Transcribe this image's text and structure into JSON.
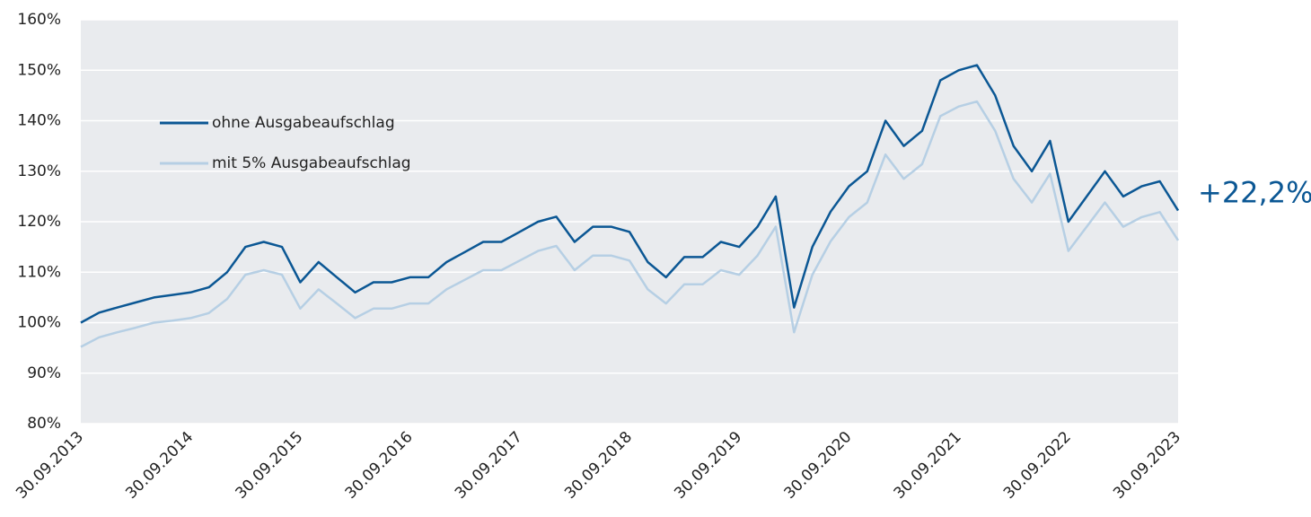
{
  "chart_data": {
    "type": "line",
    "categories": [
      "30.09.2013",
      null,
      null,
      null,
      null,
      null,
      "30.09.2014",
      null,
      null,
      null,
      null,
      null,
      "30.09.2015",
      null,
      null,
      null,
      null,
      null,
      "30.09.2016",
      null,
      null,
      null,
      null,
      null,
      "30.09.2017",
      null,
      null,
      null,
      null,
      null,
      "30.09.2018",
      null,
      null,
      null,
      null,
      null,
      "30.09.2019",
      null,
      null,
      null,
      null,
      null,
      "30.09.2020",
      null,
      null,
      null,
      null,
      null,
      "30.09.2021",
      null,
      null,
      null,
      null,
      null,
      "30.09.2022",
      null,
      null,
      null,
      null,
      null,
      "30.09.2023"
    ],
    "series": [
      {
        "name": "ohne Ausgabeaufschlag",
        "color": "#0b5794",
        "values": [
          100,
          102,
          103,
          104,
          105,
          105.5,
          106,
          107,
          110,
          115,
          116,
          115,
          108,
          112,
          109,
          106,
          108,
          108,
          109,
          109,
          112,
          114,
          116,
          116,
          118,
          120,
          121,
          116,
          119,
          119,
          118,
          112,
          109,
          113,
          113,
          116,
          115,
          119,
          125,
          103,
          115,
          122,
          127,
          130,
          140,
          135,
          138,
          148,
          150,
          151,
          145,
          135,
          130,
          136,
          120,
          125,
          130,
          125,
          127,
          128,
          122.2
        ]
      },
      {
        "name": "mit 5% Ausgabeaufschlag",
        "color": "#b6cfe4",
        "values": [
          95.2,
          97.1,
          98.1,
          99,
          100,
          100.4,
          100.9,
          101.9,
          104.7,
          109.5,
          110.4,
          109.5,
          102.8,
          106.6,
          103.8,
          100.9,
          102.8,
          102.8,
          103.8,
          103.8,
          106.6,
          108.5,
          110.4,
          110.4,
          112.3,
          114.2,
          115.2,
          110.4,
          113.3,
          113.3,
          112.3,
          106.6,
          103.8,
          107.6,
          107.6,
          110.4,
          109.5,
          113.3,
          119,
          98.1,
          109.5,
          116.1,
          120.9,
          123.8,
          133.3,
          128.5,
          131.4,
          140.9,
          142.8,
          143.8,
          138,
          128.5,
          123.8,
          129.5,
          114.2,
          119,
          123.8,
          119,
          120.9,
          121.9,
          116.3
        ]
      }
    ],
    "annotation": "+22,2%",
    "ylim": [
      80,
      160
    ],
    "yticks": [
      {
        "value": 80,
        "label": "80%"
      },
      {
        "value": 90,
        "label": "90%"
      },
      {
        "value": 100,
        "label": "100%"
      },
      {
        "value": 110,
        "label": "110%"
      },
      {
        "value": 120,
        "label": "120%"
      },
      {
        "value": 130,
        "label": "130%"
      },
      {
        "value": 140,
        "label": "140%"
      },
      {
        "value": 150,
        "label": "150%"
      },
      {
        "value": 160,
        "label": "160%"
      }
    ],
    "grid": true
  }
}
